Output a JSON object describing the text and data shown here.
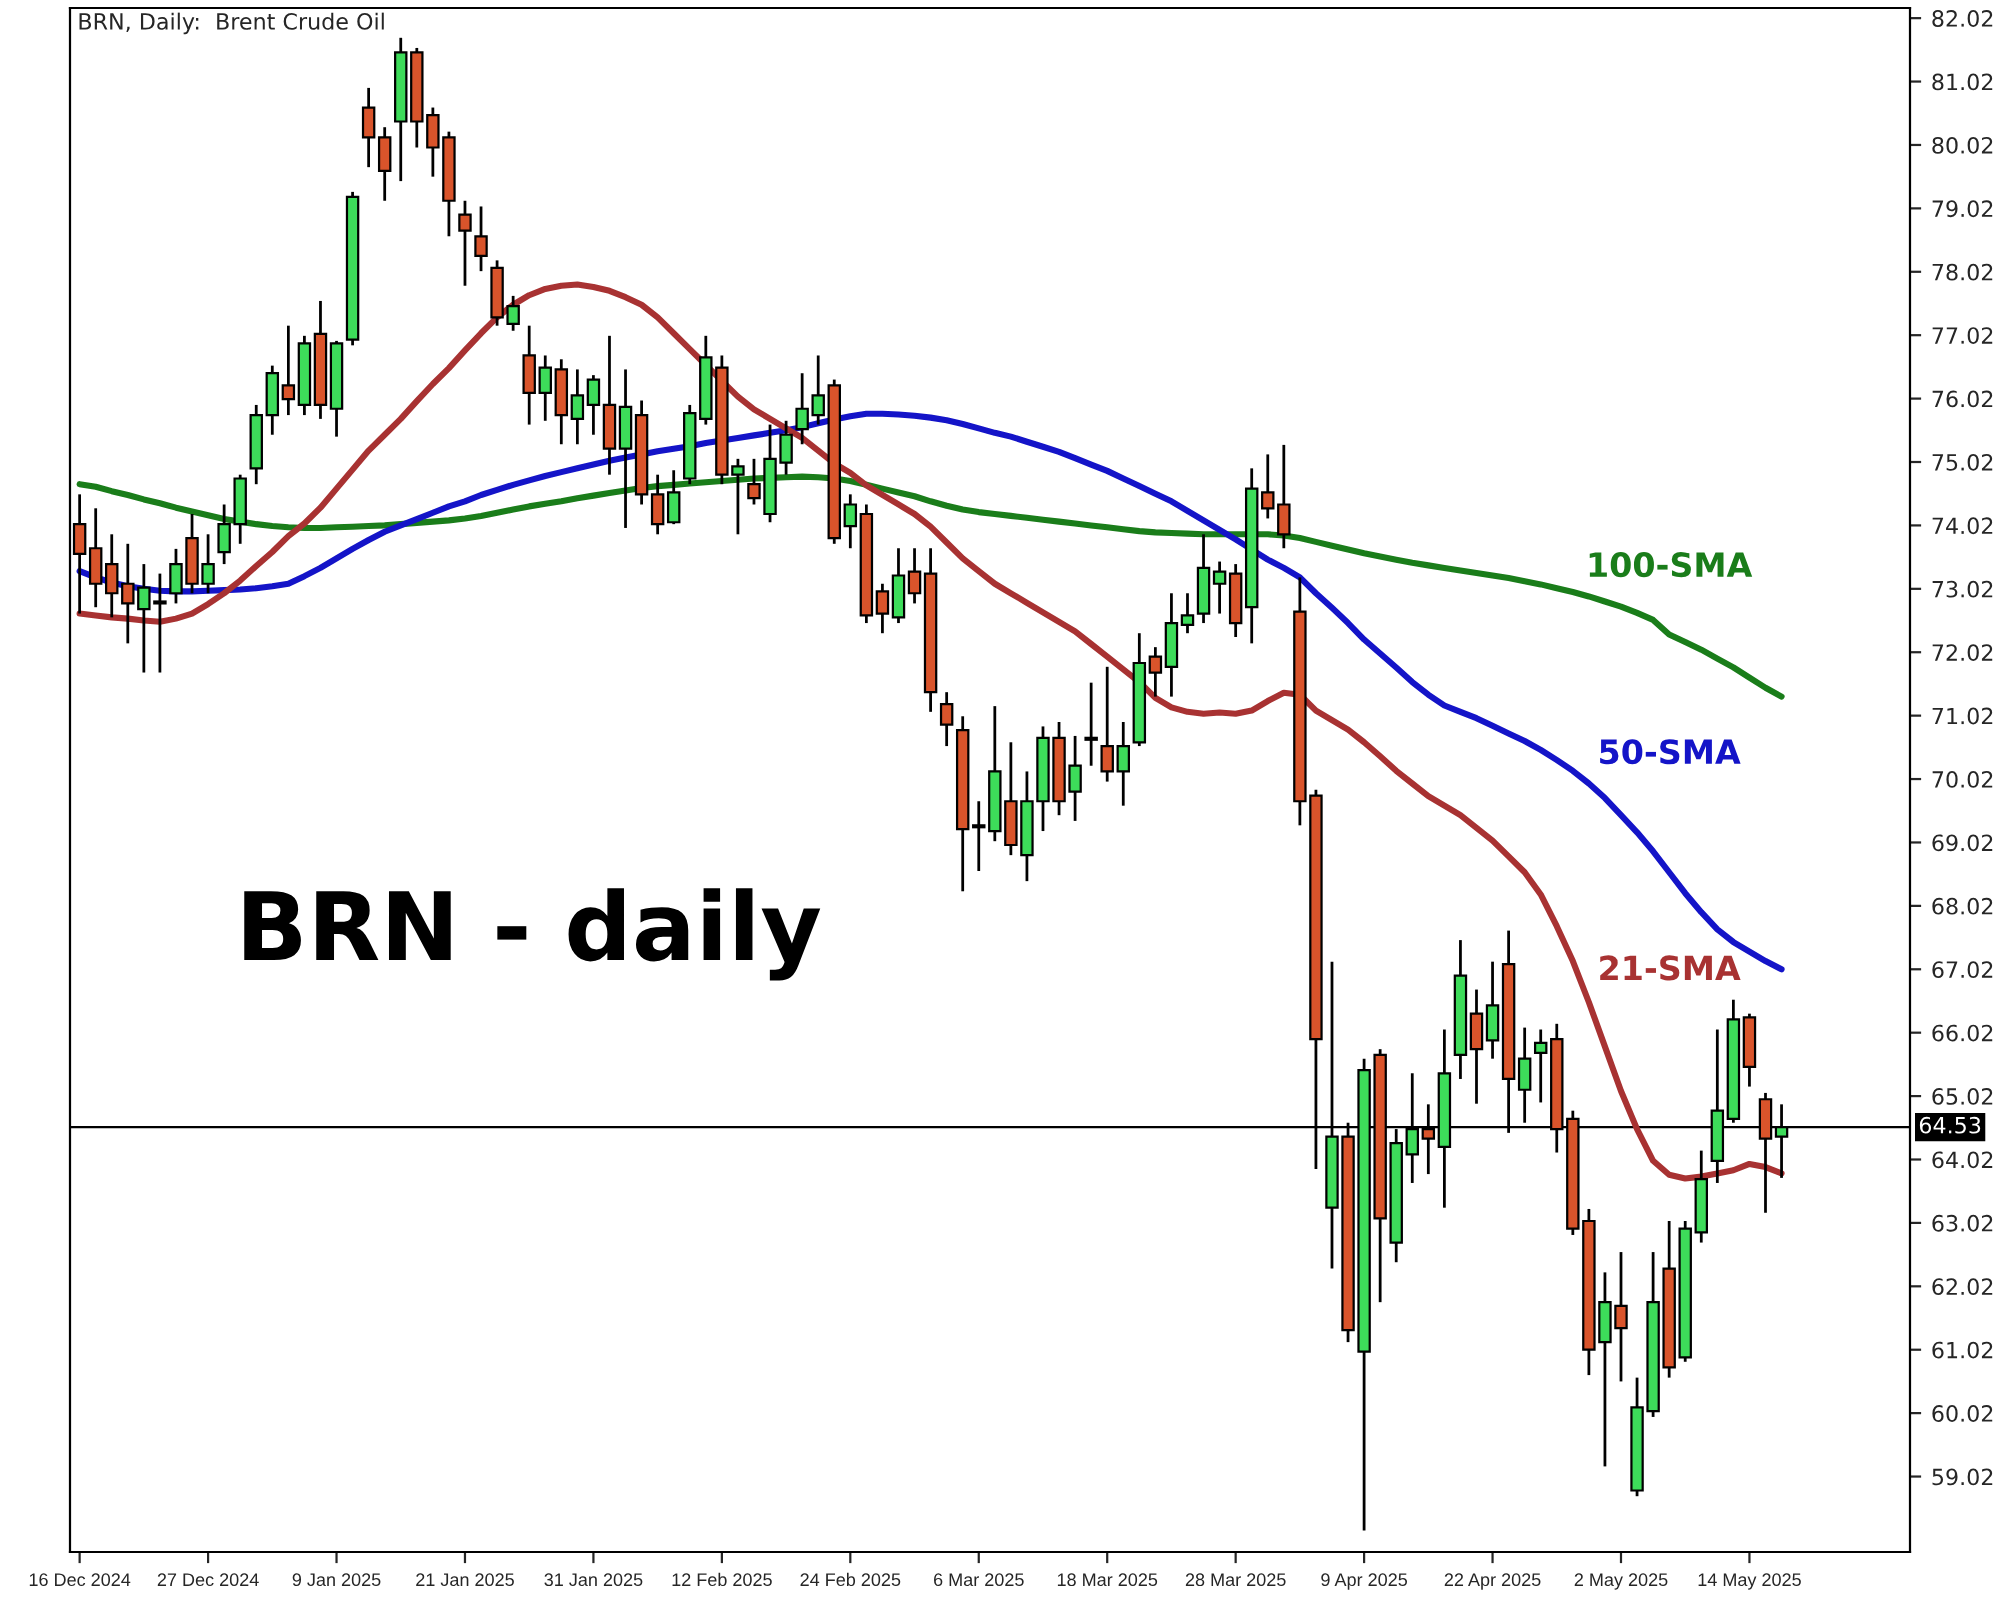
{
  "chart_data": {
    "type": "candlestick",
    "title": "BRN, Daily:  Brent Crude Oil",
    "categories": [
      "16 Dec 2024",
      null,
      null,
      null,
      null,
      null,
      null,
      null,
      "27 Dec 2024",
      null,
      null,
      null,
      null,
      null,
      null,
      null,
      "9 Jan 2025",
      null,
      null,
      null,
      null,
      null,
      null,
      null,
      "21 Jan 2025",
      null,
      null,
      null,
      null,
      null,
      null,
      null,
      "31 Jan 2025",
      null,
      null,
      null,
      null,
      null,
      null,
      null,
      "12 Feb 2025",
      null,
      null,
      null,
      null,
      null,
      null,
      null,
      "24 Feb 2025",
      null,
      null,
      null,
      null,
      null,
      null,
      null,
      "6 Mar 2025",
      null,
      null,
      null,
      null,
      null,
      null,
      null,
      "18 Mar 2025",
      null,
      null,
      null,
      null,
      null,
      null,
      null,
      "28 Mar 2025",
      null,
      null,
      null,
      null,
      null,
      null,
      null,
      "9 Apr 2025",
      null,
      null,
      null,
      null,
      null,
      null,
      null,
      "22 Apr 2025",
      null,
      null,
      null,
      null,
      null,
      null,
      null,
      "2 May 2025",
      null,
      null,
      null,
      null,
      null,
      null,
      null,
      "14 May 2025",
      null,
      null
    ],
    "ohlc": [
      [
        74.04,
        74.51,
        72.63,
        73.57
      ],
      [
        73.66,
        74.29,
        72.73,
        73.1
      ],
      [
        73.41,
        73.88,
        72.57,
        72.95
      ],
      [
        73.1,
        73.73,
        72.16,
        72.79
      ],
      [
        72.7,
        73.41,
        71.7,
        73.04
      ],
      [
        72.79,
        73.26,
        71.7,
        72.82
      ],
      [
        72.95,
        73.65,
        72.79,
        73.41
      ],
      [
        73.82,
        74.2,
        72.95,
        73.1
      ],
      [
        73.1,
        73.88,
        72.95,
        73.41
      ],
      [
        73.6,
        74.35,
        73.41,
        74.04
      ],
      [
        74.04,
        74.82,
        73.73,
        74.76
      ],
      [
        74.92,
        75.92,
        74.67,
        75.76
      ],
      [
        75.76,
        76.54,
        75.45,
        76.42
      ],
      [
        76.23,
        77.17,
        75.76,
        76.01
      ],
      [
        75.92,
        77.01,
        75.76,
        76.89
      ],
      [
        77.04,
        77.56,
        75.7,
        75.92
      ],
      [
        75.86,
        76.93,
        75.42,
        76.89
      ],
      [
        76.95,
        79.28,
        76.86,
        79.2
      ],
      [
        80.61,
        80.92,
        79.67,
        80.14
      ],
      [
        80.14,
        80.3,
        79.14,
        79.61
      ],
      [
        80.39,
        81.71,
        79.45,
        81.48
      ],
      [
        81.48,
        81.55,
        79.98,
        80.39
      ],
      [
        80.49,
        80.61,
        79.52,
        79.98
      ],
      [
        80.14,
        80.23,
        78.58,
        79.14
      ],
      [
        78.92,
        79.14,
        77.8,
        78.67
      ],
      [
        78.58,
        79.05,
        78.03,
        78.27
      ],
      [
        78.08,
        78.2,
        77.17,
        77.3
      ],
      [
        77.2,
        77.64,
        77.09,
        77.48
      ],
      [
        76.7,
        77.17,
        75.61,
        76.11
      ],
      [
        76.11,
        76.7,
        75.67,
        76.51
      ],
      [
        76.48,
        76.64,
        75.3,
        75.76
      ],
      [
        75.7,
        76.48,
        75.3,
        76.07
      ],
      [
        75.92,
        76.39,
        75.45,
        76.32
      ],
      [
        75.92,
        77.01,
        74.82,
        75.23
      ],
      [
        75.23,
        76.48,
        73.98,
        75.89
      ],
      [
        75.76,
        75.99,
        74.35,
        74.51
      ],
      [
        74.51,
        74.82,
        73.88,
        74.04
      ],
      [
        74.07,
        74.89,
        74.04,
        74.54
      ],
      [
        74.76,
        75.92,
        74.67,
        75.79
      ],
      [
        75.7,
        77.01,
        75.61,
        76.67
      ],
      [
        76.51,
        76.7,
        74.67,
        74.82
      ],
      [
        74.82,
        75.07,
        73.88,
        74.95
      ],
      [
        74.67,
        75.07,
        74.35,
        74.45
      ],
      [
        74.2,
        75.61,
        74.07,
        75.07
      ],
      [
        75.01,
        75.67,
        74.82,
        75.45
      ],
      [
        75.54,
        76.42,
        75.3,
        75.86
      ],
      [
        75.76,
        76.7,
        75.61,
        76.07
      ],
      [
        76.23,
        76.32,
        73.73,
        73.82
      ],
      [
        74.01,
        74.51,
        73.66,
        74.35
      ],
      [
        74.2,
        74.35,
        72.48,
        72.6
      ],
      [
        72.98,
        73.1,
        72.32,
        72.63
      ],
      [
        72.57,
        73.66,
        72.48,
        73.23
      ],
      [
        73.29,
        73.66,
        72.79,
        72.95
      ],
      [
        73.26,
        73.66,
        71.08,
        71.39
      ],
      [
        71.2,
        71.39,
        70.54,
        70.88
      ],
      [
        70.79,
        71.01,
        68.25,
        69.23
      ],
      [
        69.26,
        69.67,
        68.57,
        69.29
      ],
      [
        69.2,
        71.17,
        69.04,
        70.14
      ],
      [
        69.67,
        70.6,
        68.82,
        68.98
      ],
      [
        68.82,
        70.14,
        68.41,
        69.67
      ],
      [
        69.67,
        70.85,
        69.2,
        70.67
      ],
      [
        70.67,
        70.92,
        69.45,
        69.67
      ],
      [
        69.82,
        70.7,
        69.36,
        70.23
      ],
      [
        70.64,
        71.54,
        70.23,
        70.67
      ],
      [
        70.54,
        71.79,
        69.98,
        70.14
      ],
      [
        70.14,
        70.92,
        69.6,
        70.54
      ],
      [
        70.6,
        72.32,
        70.54,
        71.85
      ],
      [
        71.95,
        72.1,
        71.32,
        71.7
      ],
      [
        71.79,
        72.95,
        71.32,
        72.48
      ],
      [
        72.45,
        72.95,
        72.32,
        72.6
      ],
      [
        72.63,
        73.88,
        72.48,
        73.35
      ],
      [
        73.1,
        73.45,
        72.63,
        73.29
      ],
      [
        73.26,
        73.41,
        72.26,
        72.48
      ],
      [
        72.73,
        74.92,
        72.16,
        74.6
      ],
      [
        74.54,
        75.14,
        74.13,
        74.29
      ],
      [
        74.35,
        75.29,
        73.66,
        73.88
      ],
      [
        72.66,
        73.2,
        69.29,
        69.67
      ],
      [
        69.76,
        69.85,
        63.87,
        65.92
      ],
      [
        63.26,
        67.14,
        62.3,
        64.38
      ],
      [
        64.38,
        64.6,
        61.14,
        61.33
      ],
      [
        60.99,
        65.61,
        58.17,
        65.43
      ],
      [
        65.67,
        65.76,
        61.77,
        63.09
      ],
      [
        62.71,
        64.5,
        62.4,
        64.28
      ],
      [
        64.1,
        65.38,
        63.65,
        64.5
      ],
      [
        64.5,
        64.89,
        63.79,
        64.35
      ],
      [
        64.22,
        66.07,
        63.26,
        65.38
      ],
      [
        65.67,
        67.48,
        65.29,
        66.92
      ],
      [
        66.32,
        66.7,
        64.9,
        65.76
      ],
      [
        65.9,
        67.14,
        65.61,
        66.45
      ],
      [
        67.1,
        67.63,
        64.44,
        65.29
      ],
      [
        65.12,
        66.1,
        64.6,
        65.61
      ],
      [
        65.7,
        66.07,
        64.92,
        65.86
      ],
      [
        65.92,
        66.16,
        64.13,
        64.5
      ],
      [
        64.66,
        64.79,
        62.83,
        62.93
      ],
      [
        63.05,
        63.24,
        60.62,
        61.02
      ],
      [
        61.14,
        62.24,
        59.18,
        61.77
      ],
      [
        61.71,
        62.56,
        60.52,
        61.36
      ],
      [
        58.8,
        60.58,
        58.71,
        60.11
      ],
      [
        60.05,
        62.56,
        59.96,
        61.77
      ],
      [
        62.3,
        63.05,
        60.58,
        60.74
      ],
      [
        60.9,
        63.05,
        60.83,
        62.93
      ],
      [
        62.87,
        64.16,
        62.71,
        63.71
      ],
      [
        64.0,
        66.07,
        63.65,
        64.79
      ],
      [
        64.66,
        66.54,
        64.6,
        66.23
      ],
      [
        66.26,
        66.32,
        65.17,
        65.48
      ],
      [
        64.97,
        65.07,
        63.18,
        64.35
      ],
      [
        64.38,
        64.89,
        63.73,
        64.53
      ]
    ],
    "series": [
      {
        "type": "line",
        "name": "100-SMA",
        "color": "#1a7d1a",
        "values": [
          74.67,
          74.63,
          74.56,
          74.5,
          74.43,
          74.37,
          74.3,
          74.24,
          74.18,
          74.12,
          74.08,
          74.04,
          74.01,
          73.99,
          73.98,
          73.98,
          73.99,
          74.0,
          74.01,
          74.02,
          74.04,
          74.06,
          74.08,
          74.1,
          74.13,
          74.17,
          74.22,
          74.27,
          74.32,
          74.36,
          74.4,
          74.45,
          74.49,
          74.53,
          74.57,
          74.61,
          74.64,
          74.66,
          74.68,
          74.7,
          74.72,
          74.74,
          74.76,
          74.77,
          74.78,
          74.79,
          74.78,
          74.76,
          74.72,
          74.66,
          74.6,
          74.54,
          74.48,
          74.4,
          74.33,
          74.27,
          74.23,
          74.2,
          74.17,
          74.14,
          74.11,
          74.08,
          74.05,
          74.02,
          73.99,
          73.96,
          73.93,
          73.91,
          73.9,
          73.89,
          73.88,
          73.88,
          73.88,
          73.88,
          73.88,
          73.86,
          73.82,
          73.76,
          73.7,
          73.64,
          73.58,
          73.53,
          73.48,
          73.43,
          73.39,
          73.35,
          73.31,
          73.27,
          73.23,
          73.19,
          73.14,
          73.09,
          73.03,
          72.97,
          72.9,
          72.82,
          72.74,
          72.64,
          72.53,
          72.3,
          72.18,
          72.06,
          71.92,
          71.78,
          71.62,
          71.46,
          71.32
        ]
      },
      {
        "type": "line",
        "name": "50-SMA",
        "color": "#1414c8",
        "values": [
          73.3,
          73.2,
          73.12,
          73.06,
          73.02,
          72.99,
          72.98,
          72.98,
          72.99,
          73.0,
          73.01,
          73.03,
          73.06,
          73.1,
          73.22,
          73.35,
          73.5,
          73.65,
          73.79,
          73.92,
          74.02,
          74.12,
          74.22,
          74.32,
          74.4,
          74.5,
          74.58,
          74.66,
          74.73,
          74.8,
          74.86,
          74.92,
          74.98,
          75.04,
          75.09,
          75.14,
          75.19,
          75.23,
          75.27,
          75.32,
          75.36,
          75.4,
          75.44,
          75.48,
          75.52,
          75.57,
          75.63,
          75.69,
          75.74,
          75.78,
          75.78,
          75.77,
          75.75,
          75.72,
          75.68,
          75.62,
          75.55,
          75.48,
          75.42,
          75.34,
          75.26,
          75.18,
          75.08,
          74.98,
          74.88,
          74.76,
          74.64,
          74.52,
          74.4,
          74.25,
          74.1,
          73.95,
          73.8,
          73.64,
          73.48,
          73.35,
          73.2,
          72.95,
          72.72,
          72.48,
          72.22,
          72.0,
          71.78,
          71.55,
          71.35,
          71.18,
          71.08,
          70.98,
          70.86,
          70.74,
          70.62,
          70.48,
          70.32,
          70.15,
          69.95,
          69.72,
          69.45,
          69.18,
          68.88,
          68.55,
          68.22,
          67.92,
          67.65,
          67.45,
          67.3,
          67.15,
          67.02
        ]
      },
      {
        "type": "line",
        "name": "21-SMA",
        "color": "#a83232",
        "values": [
          72.63,
          72.6,
          72.57,
          72.55,
          72.52,
          72.5,
          72.55,
          72.63,
          72.78,
          72.95,
          73.15,
          73.38,
          73.6,
          73.85,
          74.05,
          74.3,
          74.6,
          74.9,
          75.2,
          75.45,
          75.7,
          75.98,
          76.25,
          76.5,
          76.78,
          77.05,
          77.3,
          77.5,
          77.65,
          77.75,
          77.8,
          77.82,
          77.78,
          77.72,
          77.62,
          77.5,
          77.3,
          77.05,
          76.8,
          76.55,
          76.3,
          76.05,
          75.85,
          75.7,
          75.55,
          75.4,
          75.2,
          75.0,
          74.85,
          74.65,
          74.5,
          74.35,
          74.2,
          74.0,
          73.75,
          73.5,
          73.3,
          73.1,
          72.95,
          72.8,
          72.65,
          72.5,
          72.35,
          72.15,
          71.95,
          71.75,
          71.55,
          71.3,
          71.15,
          71.08,
          71.05,
          71.07,
          71.05,
          71.1,
          71.25,
          71.38,
          71.35,
          71.1,
          70.95,
          70.8,
          70.6,
          70.38,
          70.15,
          69.95,
          69.75,
          69.6,
          69.45,
          69.25,
          69.05,
          68.8,
          68.55,
          68.2,
          67.7,
          67.15,
          66.5,
          65.8,
          65.1,
          64.5,
          64.0,
          63.78,
          63.72,
          63.75,
          63.8,
          63.85,
          63.95,
          63.9,
          63.8
        ]
      }
    ],
    "ylim": [
      57.83,
      82.18
    ],
    "yticks": [
      59.02,
      60.02,
      61.02,
      62.02,
      63.02,
      64.02,
      65.02,
      66.02,
      67.02,
      68.02,
      69.02,
      70.02,
      71.02,
      72.02,
      73.02,
      74.02,
      75.02,
      76.02,
      77.02,
      78.02,
      79.02,
      80.02,
      81.02,
      82.02
    ],
    "ref_lines": [
      {
        "axis": "y",
        "value": 64.53,
        "label": "64.53",
        "color": "#000000"
      }
    ],
    "annotations": [
      "BRN - daily"
    ],
    "grid": false
  }
}
